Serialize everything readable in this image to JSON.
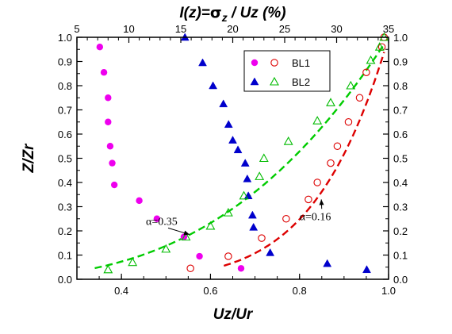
{
  "chart_data": {
    "type": "scatter",
    "xlabel": "Uz/Ur",
    "ylabel": "Z/Zr",
    "top_xlabel": {
      "prefix": "I(z)=",
      "sigma": "σ",
      "sub": "z",
      "mid": " / ",
      "bold": "Uz",
      "suffix": " (%)"
    },
    "xlim": [
      0.3,
      1.0
    ],
    "ylim": [
      0.0,
      1.0
    ],
    "top_xlim": [
      5,
      35
    ],
    "x_ticks": [
      "0.4",
      "0.6",
      "0.8",
      "1.0"
    ],
    "x_tick_values": [
      0.4,
      0.6,
      0.8,
      1.0
    ],
    "y_ticks": [
      "0.0",
      "0.1",
      "0.2",
      "0.3",
      "0.4",
      "0.5",
      "0.6",
      "0.7",
      "0.8",
      "0.9",
      "1.0"
    ],
    "y_tick_values": [
      0.0,
      0.1,
      0.2,
      0.3,
      0.4,
      0.5,
      0.6,
      0.7,
      0.8,
      0.9,
      1.0
    ],
    "top_ticks": [
      "5",
      "10",
      "15",
      "20",
      "25",
      "30",
      "35"
    ],
    "top_tick_values": [
      5,
      10,
      15,
      20,
      25,
      30,
      35
    ],
    "grid": false,
    "legend_position": "top-right",
    "series": [
      {
        "name": "BL1",
        "kind": "turbulence",
        "axis": "top",
        "marker": "filled-circle",
        "color": "#ee00ee",
        "points": [
          [
            7.2,
            0.96
          ],
          [
            7.6,
            0.855
          ],
          [
            8.0,
            0.75
          ],
          [
            8.0,
            0.65
          ],
          [
            8.2,
            0.55
          ],
          [
            8.4,
            0.48
          ],
          [
            8.6,
            0.39
          ],
          [
            11.0,
            0.325
          ],
          [
            12.7,
            0.25
          ],
          [
            15.3,
            0.175
          ],
          [
            16.8,
            0.095
          ],
          [
            20.8,
            0.045
          ]
        ]
      },
      {
        "name": "BL2",
        "kind": "turbulence",
        "axis": "top",
        "marker": "filled-triangle",
        "color": "#0000cc",
        "points": [
          [
            15.4,
            1.0
          ],
          [
            17.1,
            0.895
          ],
          [
            18.1,
            0.8
          ],
          [
            19.1,
            0.725
          ],
          [
            19.6,
            0.64
          ],
          [
            20.0,
            0.575
          ],
          [
            20.5,
            0.535
          ],
          [
            21.2,
            0.48
          ],
          [
            21.4,
            0.415
          ],
          [
            21.5,
            0.345
          ],
          [
            21.9,
            0.265
          ],
          [
            22.0,
            0.215
          ],
          [
            23.6,
            0.11
          ],
          [
            29.1,
            0.065
          ],
          [
            32.9,
            0.04
          ]
        ]
      },
      {
        "name": "BL1",
        "kind": "velocity",
        "axis": "bottom",
        "marker": "open-circle",
        "color": "#dd0000",
        "points": [
          [
            0.99,
            1.0
          ],
          [
            0.985,
            0.96
          ],
          [
            0.95,
            0.855
          ],
          [
            0.935,
            0.75
          ],
          [
            0.91,
            0.65
          ],
          [
            0.885,
            0.55
          ],
          [
            0.87,
            0.48
          ],
          [
            0.84,
            0.4
          ],
          [
            0.82,
            0.33
          ],
          [
            0.77,
            0.25
          ],
          [
            0.715,
            0.17
          ],
          [
            0.64,
            0.095
          ],
          [
            0.555,
            0.045
          ]
        ]
      },
      {
        "name": "BL2",
        "kind": "velocity",
        "axis": "bottom",
        "marker": "open-triangle",
        "color": "#00bb00",
        "points": [
          [
            0.99,
            1.0
          ],
          [
            0.98,
            0.96
          ],
          [
            0.96,
            0.905
          ],
          [
            0.915,
            0.8
          ],
          [
            0.87,
            0.73
          ],
          [
            0.84,
            0.655
          ],
          [
            0.775,
            0.57
          ],
          [
            0.72,
            0.5
          ],
          [
            0.71,
            0.425
          ],
          [
            0.675,
            0.345
          ],
          [
            0.64,
            0.275
          ],
          [
            0.6,
            0.22
          ],
          [
            0.545,
            0.175
          ],
          [
            0.5,
            0.125
          ],
          [
            0.425,
            0.07
          ],
          [
            0.37,
            0.04
          ]
        ]
      }
    ],
    "fits": [
      {
        "alpha": 0.16,
        "color": "#dd0000",
        "x_range": [
          0.63,
          0.99
        ]
      },
      {
        "alpha": 0.35,
        "color": "#00cc00",
        "x_range": [
          0.34,
          0.99
        ]
      }
    ],
    "annotations": [
      {
        "text": "α=0.35",
        "at": [
          0.455,
          0.225
        ],
        "arrow_to": [
          0.553,
          0.185
        ]
      },
      {
        "text": "α=0.16",
        "at": [
          0.8,
          0.245
        ],
        "arrow_to": [
          0.849,
          0.33
        ]
      }
    ]
  }
}
